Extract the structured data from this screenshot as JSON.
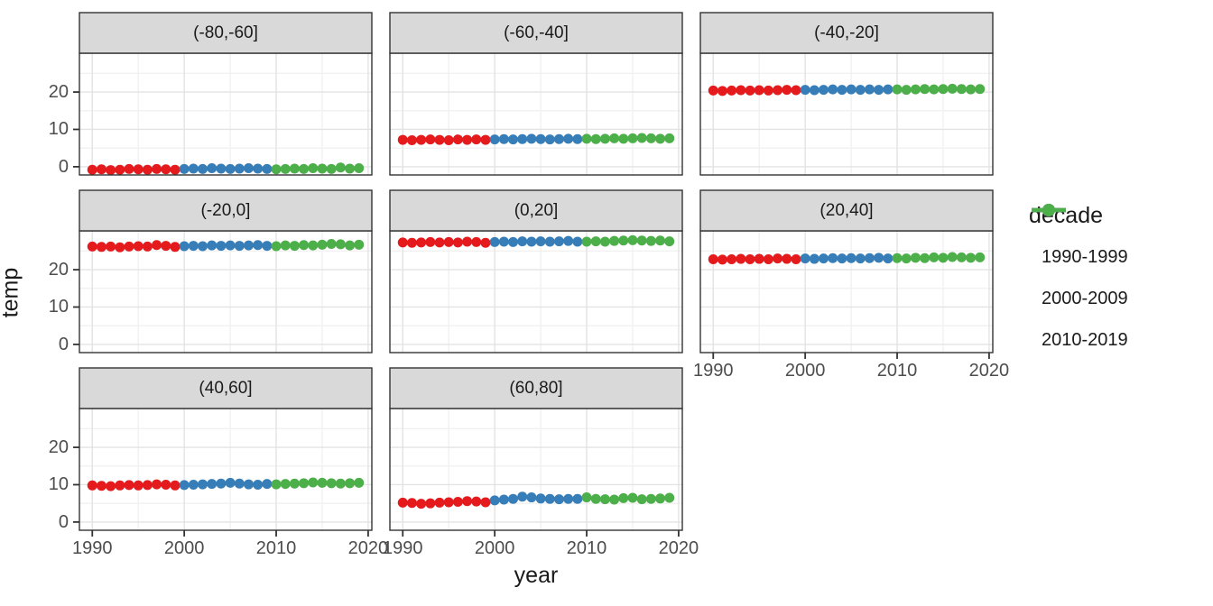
{
  "axes": {
    "x_title": "year",
    "y_title": "temp"
  },
  "legend": {
    "title": "decade",
    "position": "right"
  },
  "chart_data": {
    "type": "scatter",
    "title": "",
    "xlabel": "year",
    "ylabel": "temp",
    "facet_labels": [
      "(-80,-60]",
      "(-60,-40]",
      "(-40,-20]",
      "(-20,0]",
      "(0,20]",
      "(20,40]",
      "(40,60]",
      "(60,80]"
    ],
    "x": [
      1990,
      1991,
      1992,
      1993,
      1994,
      1995,
      1996,
      1997,
      1998,
      1999,
      2000,
      2001,
      2002,
      2003,
      2004,
      2005,
      2006,
      2007,
      2008,
      2009,
      2010,
      2011,
      2012,
      2013,
      2014,
      2015,
      2016,
      2017,
      2018,
      2019
    ],
    "decades": [
      {
        "label": "1990-1999",
        "color": "#E41A1C",
        "start": 1990,
        "end": 1999
      },
      {
        "label": "2000-2009",
        "color": "#377EB8",
        "start": 2000,
        "end": 2009
      },
      {
        "label": "2010-2019",
        "color": "#4DAF4A",
        "start": 2010,
        "end": 2019
      }
    ],
    "facets": [
      {
        "label": "(-80,-60]",
        "temps": [
          -0.8,
          -0.7,
          -0.9,
          -0.8,
          -0.6,
          -0.7,
          -0.8,
          -0.6,
          -0.7,
          -0.8,
          -0.6,
          -0.5,
          -0.6,
          -0.4,
          -0.5,
          -0.6,
          -0.5,
          -0.4,
          -0.5,
          -0.6,
          -0.7,
          -0.6,
          -0.5,
          -0.6,
          -0.4,
          -0.5,
          -0.6,
          -0.2,
          -0.5,
          -0.4
        ]
      },
      {
        "label": "(-60,-40]",
        "temps": [
          7.2,
          7.1,
          7.2,
          7.3,
          7.2,
          7.1,
          7.3,
          7.2,
          7.3,
          7.2,
          7.3,
          7.4,
          7.3,
          7.4,
          7.5,
          7.4,
          7.3,
          7.4,
          7.5,
          7.4,
          7.5,
          7.4,
          7.5,
          7.6,
          7.5,
          7.6,
          7.7,
          7.6,
          7.5,
          7.6
        ]
      },
      {
        "label": "(-40,-20]",
        "temps": [
          20.4,
          20.3,
          20.4,
          20.5,
          20.4,
          20.5,
          20.4,
          20.5,
          20.6,
          20.5,
          20.6,
          20.5,
          20.6,
          20.7,
          20.6,
          20.7,
          20.6,
          20.7,
          20.6,
          20.7,
          20.7,
          20.6,
          20.7,
          20.8,
          20.7,
          20.8,
          20.9,
          20.8,
          20.7,
          20.8
        ]
      },
      {
        "label": "(-20,0]",
        "temps": [
          26.2,
          26.1,
          26.2,
          26.0,
          26.2,
          26.3,
          26.2,
          26.6,
          26.4,
          26.1,
          26.3,
          26.4,
          26.3,
          26.5,
          26.4,
          26.5,
          26.4,
          26.5,
          26.6,
          26.4,
          26.3,
          26.5,
          26.4,
          26.6,
          26.5,
          26.7,
          26.9,
          26.8,
          26.5,
          26.7
        ]
      },
      {
        "label": "(0,20]",
        "temps": [
          27.3,
          27.2,
          27.3,
          27.4,
          27.3,
          27.4,
          27.3,
          27.5,
          27.4,
          27.2,
          27.4,
          27.5,
          27.4,
          27.6,
          27.5,
          27.6,
          27.5,
          27.6,
          27.7,
          27.5,
          27.5,
          27.6,
          27.5,
          27.7,
          27.8,
          27.9,
          27.8,
          27.7,
          27.8,
          27.6
        ]
      },
      {
        "label": "(20,40]",
        "temps": [
          22.8,
          22.7,
          22.8,
          22.9,
          22.8,
          22.9,
          22.8,
          23.0,
          22.9,
          22.8,
          23.0,
          22.9,
          23.0,
          23.1,
          23.0,
          23.1,
          23.0,
          23.1,
          23.2,
          23.0,
          23.1,
          23.0,
          23.2,
          23.1,
          23.3,
          23.2,
          23.4,
          23.3,
          23.2,
          23.3
        ]
      },
      {
        "label": "(40,60]",
        "temps": [
          9.8,
          9.7,
          9.6,
          9.8,
          9.9,
          9.8,
          9.9,
          10.1,
          10.0,
          9.8,
          9.9,
          10.0,
          10.1,
          10.2,
          10.3,
          10.5,
          10.3,
          10.1,
          10.0,
          10.2,
          10.1,
          10.2,
          10.3,
          10.4,
          10.6,
          10.5,
          10.4,
          10.3,
          10.4,
          10.5
        ]
      },
      {
        "label": "(60,80]",
        "temps": [
          5.2,
          5.1,
          4.9,
          5.0,
          5.2,
          5.3,
          5.4,
          5.6,
          5.5,
          5.3,
          5.8,
          6.0,
          6.2,
          6.8,
          6.6,
          6.3,
          6.2,
          6.1,
          6.2,
          6.2,
          6.6,
          6.2,
          6.1,
          6.0,
          6.4,
          6.5,
          6.1,
          6.2,
          6.3,
          6.5
        ]
      }
    ],
    "xlim": [
      1988.6,
      2020.4
    ],
    "ylim": [
      -2.2,
      30.4
    ],
    "x_ticks": [
      1990,
      2000,
      2010,
      2020
    ],
    "y_ticks": [
      0,
      10,
      20
    ],
    "x_minor_ticks": [
      1995,
      2005,
      2015
    ],
    "y_minor_ticks": [
      5,
      15,
      25
    ],
    "grid": true,
    "legend_position": "right",
    "style": {
      "point_radius": 5.5,
      "panel_background": "#ffffff",
      "strip_background": "#d9d9d9",
      "panel_border_color": "#333333",
      "grid_major_color": "#e3e3e3",
      "grid_minor_color": "#f1f1f1",
      "tick_color": "#333333",
      "tick_label_color": "#4d4d4d",
      "text_color": "#1a1a1a"
    }
  }
}
